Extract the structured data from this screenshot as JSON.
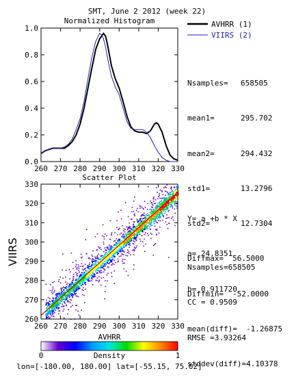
{
  "header": {
    "title": "SMT,  June 2 2012 (week 22)"
  },
  "legend": [
    {
      "label": "AVHRR (1)",
      "color": "#000000"
    },
    {
      "label": "VIIRS (2)",
      "color": "#2222bb"
    }
  ],
  "hist_stats": [
    {
      "key": "Nsamples=",
      "value": "658505"
    },
    {
      "key": "mean1=",
      "value": "295.702"
    },
    {
      "key": "mean2=",
      "value": "294.432"
    },
    {
      "key": "std1=",
      "value": "13.2796"
    },
    {
      "key": "std2=",
      "value": "12.7304"
    },
    {
      "key": "Diffmax=",
      "value": "56.5000"
    },
    {
      "key": "Diffmin=",
      "value": "-52.0000"
    },
    {
      "key": "mean(diff)=",
      "value": "-1.26875"
    },
    {
      "key": "stddev(diff)=",
      "value": "4.10378"
    }
  ],
  "regression": {
    "equation": "Y= a +b * X",
    "a": "a= 24.8351",
    "b": "b= 0.911720"
  },
  "fit_stats": {
    "nsamples": "Nsamples=658505",
    "cc": "CC = 0.9509",
    "rmse": "RMSE =3.93264"
  },
  "colorbar": {
    "label": "Density",
    "min_label": "0",
    "max_label": "1"
  },
  "footer": {
    "coords": "lon=[-180.00, 180.00] lat=[-55.15, 75.02]"
  },
  "chart_data": [
    {
      "type": "line",
      "title": "Normalized Histogram",
      "xlabel": "",
      "ylabel": "",
      "xlim": [
        260,
        330
      ],
      "ylim": [
        0.0,
        1.0
      ],
      "xticks": [
        260,
        270,
        280,
        290,
        300,
        310,
        320,
        330
      ],
      "yticks": [
        "0.0",
        "0.2",
        "0.4",
        "0.6",
        "0.8",
        "1.0"
      ],
      "series": [
        {
          "name": "AVHRR (1)",
          "color": "#000000",
          "x": [
            260,
            262,
            264,
            266,
            268,
            270,
            272,
            274,
            276,
            278,
            280,
            282,
            284,
            286,
            288,
            290,
            292,
            293,
            294,
            295,
            296,
            298,
            300,
            302,
            304,
            306,
            308,
            310,
            312,
            314,
            316,
            318,
            319,
            320,
            322,
            324,
            326,
            328,
            330
          ],
          "y": [
            0.06,
            0.08,
            0.09,
            0.1,
            0.1,
            0.1,
            0.1,
            0.12,
            0.15,
            0.2,
            0.28,
            0.4,
            0.55,
            0.7,
            0.84,
            0.92,
            0.96,
            0.94,
            0.88,
            0.8,
            0.72,
            0.62,
            0.55,
            0.45,
            0.34,
            0.26,
            0.23,
            0.22,
            0.22,
            0.21,
            0.23,
            0.28,
            0.29,
            0.28,
            0.22,
            0.12,
            0.05,
            0.02,
            0.01
          ]
        },
        {
          "name": "VIIRS (2)",
          "color": "#2222bb",
          "x": [
            260,
            262,
            264,
            266,
            268,
            270,
            272,
            274,
            276,
            278,
            280,
            282,
            284,
            286,
            288,
            290,
            291,
            292,
            293,
            294,
            296,
            298,
            300,
            302,
            304,
            306,
            308,
            310,
            312,
            314,
            316,
            318,
            320,
            322,
            324,
            326,
            328,
            330
          ],
          "y": [
            0.06,
            0.08,
            0.09,
            0.1,
            0.1,
            0.1,
            0.11,
            0.13,
            0.17,
            0.24,
            0.32,
            0.45,
            0.62,
            0.78,
            0.9,
            0.96,
            0.95,
            0.92,
            0.86,
            0.78,
            0.64,
            0.56,
            0.5,
            0.4,
            0.3,
            0.25,
            0.24,
            0.24,
            0.24,
            0.22,
            0.18,
            0.12,
            0.07,
            0.03,
            0.01,
            0.0,
            0.0,
            0.0
          ]
        }
      ]
    },
    {
      "type": "heatmap",
      "title": "Scatter Plot",
      "xlabel": "AVHRR",
      "ylabel": "VIIRS",
      "xlim": [
        260,
        330
      ],
      "ylim": [
        260,
        330
      ],
      "xticks": [
        260,
        270,
        280,
        290,
        300,
        310,
        320,
        330
      ],
      "yticks": [
        260,
        270,
        280,
        290,
        300,
        310,
        320,
        330
      ],
      "fit_line": {
        "intercept": 24.8351,
        "slope": 0.91172,
        "color": "#cc0000"
      },
      "density_colormap": [
        "#ffffff",
        "#6600cc",
        "#0000ff",
        "#0099ff",
        "#00e5e5",
        "#00dd00",
        "#ffff00",
        "#ff8800",
        "#ff0000"
      ]
    }
  ]
}
